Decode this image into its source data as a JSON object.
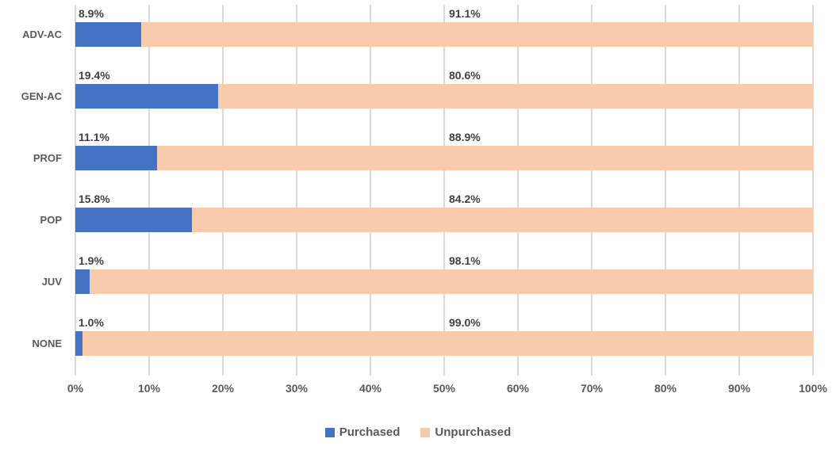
{
  "chart_data": {
    "type": "bar",
    "orientation": "horizontal",
    "stacked": true,
    "title": "",
    "xlabel": "",
    "ylabel": "",
    "categories": [
      "ADV-AC",
      "GEN-AC",
      "PROF",
      "POP",
      "JUV",
      "NONE"
    ],
    "series": [
      {
        "name": "Purchased",
        "color": "#4472C4",
        "values": [
          8.9,
          19.4,
          11.1,
          15.8,
          1.9,
          1.0
        ],
        "labels": [
          "8.9%",
          "19.4%",
          "11.1%",
          "15.8%",
          "1.9%",
          "1.0%"
        ]
      },
      {
        "name": "Unpurchased",
        "color": "#F8CBAD",
        "values": [
          91.1,
          80.6,
          88.9,
          84.2,
          98.1,
          99.0
        ],
        "labels": [
          "91.1%",
          "80.6%",
          "88.9%",
          "84.2%",
          "98.1%",
          "99.0%"
        ]
      }
    ],
    "x_axis": {
      "min": 0,
      "max": 100,
      "tick_step": 10,
      "tick_labels": [
        "0%",
        "10%",
        "20%",
        "30%",
        "40%",
        "50%",
        "60%",
        "70%",
        "80%",
        "90%",
        "100%"
      ]
    },
    "grid": true,
    "gridline_color": "#D9D9D9",
    "label_color": "#404040",
    "axis_text_color": "#595959",
    "legend": {
      "position": "bottom",
      "items": [
        "Purchased",
        "Unpurchased"
      ]
    }
  }
}
